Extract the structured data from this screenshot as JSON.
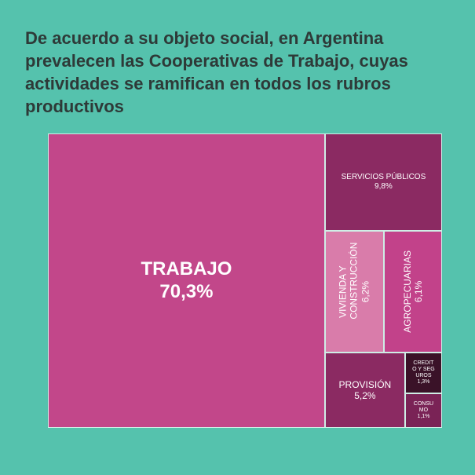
{
  "chart_data": {
    "type": "treemap",
    "title": "De acuerdo a su objeto social, en Argentina prevalecen las Cooperativas de Trabajo, cuyas actividades se ramifican en todos los rubros productivos",
    "categories": [
      "TRABAJO",
      "SERVICIOS PÚBLICOS",
      "VIVIENDA Y CONSTRUCCIÓN",
      "AGROPECUARIAS",
      "PROVISIÓN",
      "CREDITO Y SEGUROS",
      "CONSUMO"
    ],
    "values": [
      70.3,
      9.8,
      6.2,
      6.1,
      5.2,
      1.3,
      1.1
    ],
    "value_labels": [
      "70,3%",
      "9,8%",
      "6,2%",
      "6,1%",
      "5,2%",
      "1,3%",
      "1,1%"
    ],
    "colors": [
      "#c2478a",
      "#8b2a62",
      "#d97caa",
      "#c2428a",
      "#8b2a62",
      "#3a1228",
      "#7a2356"
    ]
  }
}
